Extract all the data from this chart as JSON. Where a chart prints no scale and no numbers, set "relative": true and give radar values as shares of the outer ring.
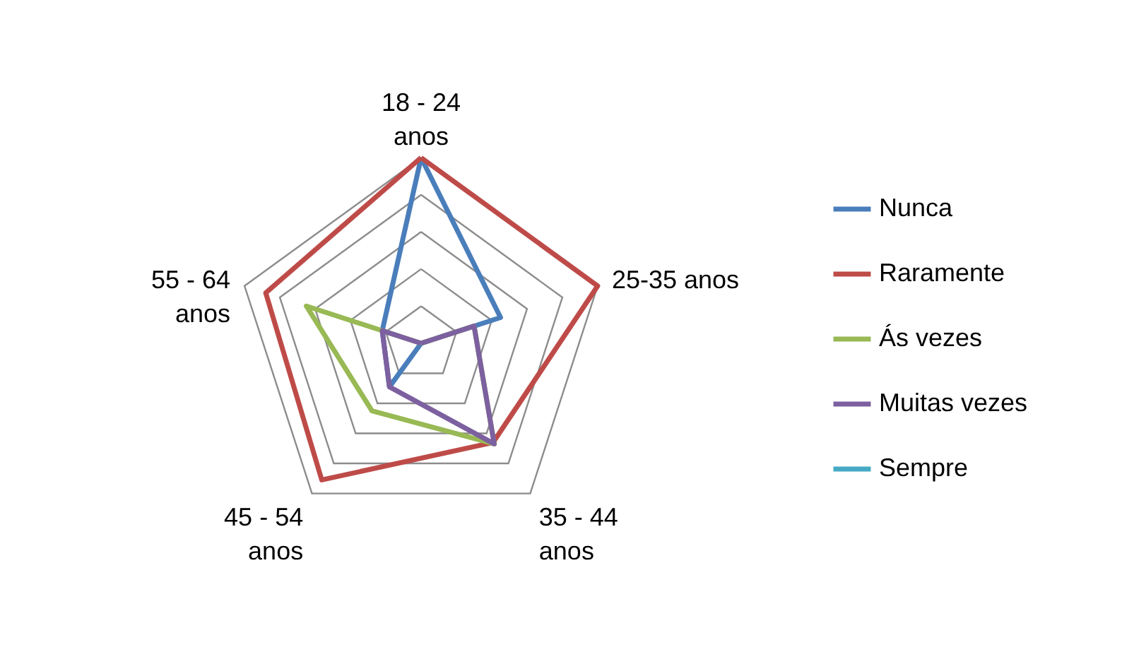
{
  "chart_data": {
    "type": "radar",
    "relative": true,
    "grid": true,
    "legend": "right",
    "line_style": "solid",
    "marker": "none",
    "categories": [
      "18 - 24 anos",
      "25-35 anos",
      "35 - 44 anos",
      "45 - 54 anos",
      "55 - 64 anos"
    ],
    "series": [
      {
        "name": "Nunca",
        "color": "#4a7ebb",
        "values": [
          1.0,
          0.45,
          0.0,
          0.29,
          0.22
        ]
      },
      {
        "name": "Raramente",
        "color": "#be4b48",
        "values": [
          1.0,
          1.0,
          0.66,
          0.91,
          0.88
        ]
      },
      {
        "name": "Ás vezes",
        "color": "#98b954",
        "values": [
          0.0,
          0.3,
          0.67,
          0.45,
          0.65
        ]
      },
      {
        "name": "Muitas vezes",
        "color": "#7d60a0",
        "values": [
          0.0,
          0.3,
          0.67,
          0.29,
          0.22
        ]
      },
      {
        "name": "Sempre",
        "color": "#46aac5",
        "values": [
          null,
          null,
          null,
          null,
          null
        ]
      }
    ]
  }
}
